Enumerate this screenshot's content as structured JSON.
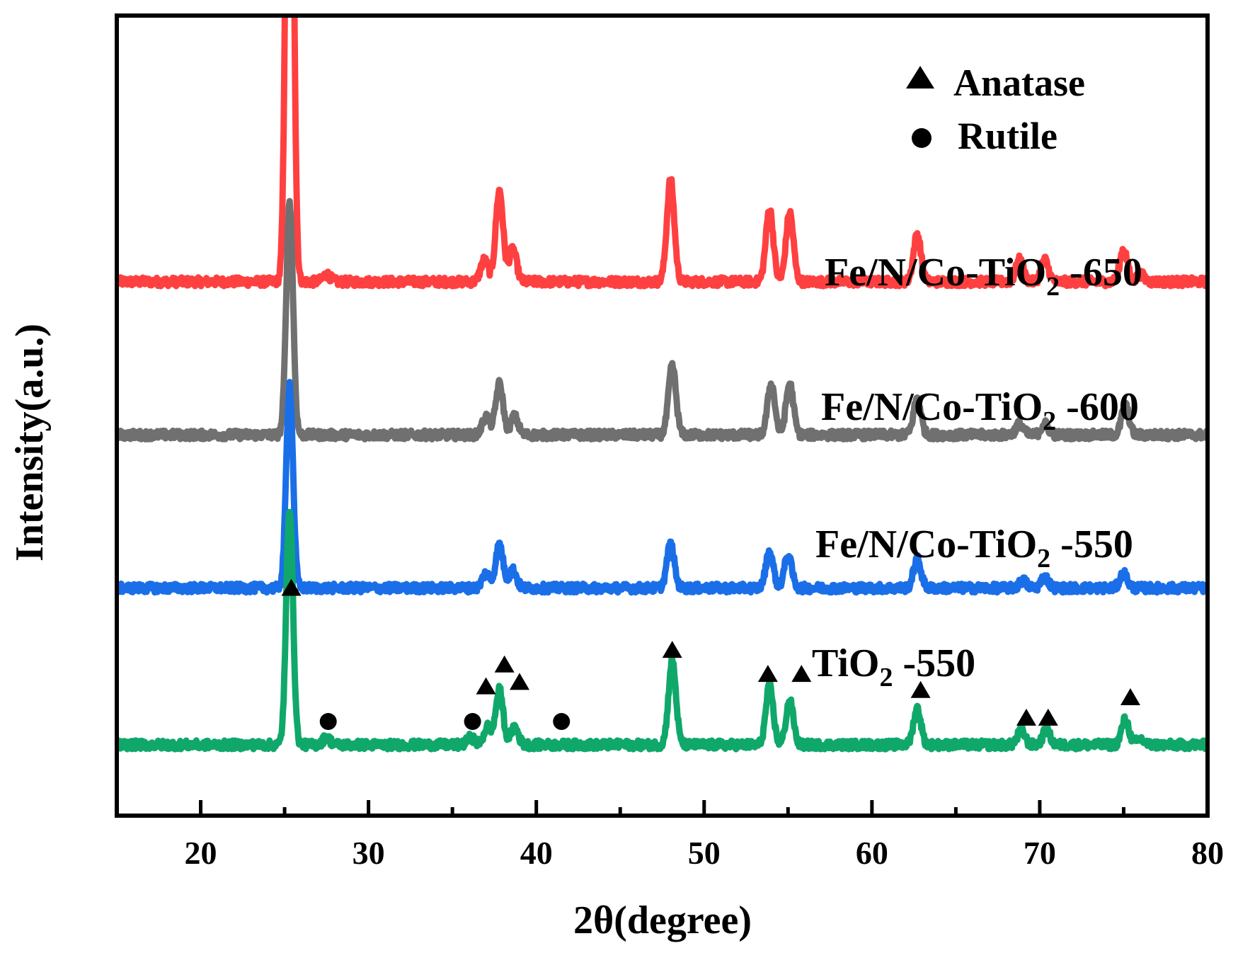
{
  "chart_data": {
    "type": "line",
    "title": "",
    "xlabel": "2θ(degree)",
    "ylabel": "Intensity(a.u.)",
    "xlim": [
      15,
      80
    ],
    "ylim": [
      0,
      1
    ],
    "x_ticks": [
      20,
      30,
      40,
      50,
      60,
      70,
      80
    ],
    "y_ticks": [],
    "legend": {
      "position": "top-right",
      "entries": [
        {
          "marker": "triangle",
          "label": "Anatase"
        },
        {
          "marker": "circle",
          "label": "Rutile"
        }
      ]
    },
    "series": [
      {
        "name": "Fe/N/Co-TiO2 -650",
        "label_parts": [
          "Fe/N/Co-TiO",
          "2",
          " -650"
        ],
        "color": "#ff4040",
        "baseline": 0.635,
        "peaks": [
          [
            25.3,
            1.05
          ],
          [
            27.5,
            0.01
          ],
          [
            36.9,
            0.03
          ],
          [
            37.8,
            0.125
          ],
          [
            38.6,
            0.045
          ],
          [
            48.0,
            0.14
          ],
          [
            53.9,
            0.1
          ],
          [
            55.1,
            0.095
          ],
          [
            62.7,
            0.065
          ],
          [
            68.8,
            0.03
          ],
          [
            70.3,
            0.03
          ],
          [
            75.0,
            0.045
          ],
          [
            76.0,
            0.01
          ]
        ]
      },
      {
        "name": "Fe/N/Co-TiO2 -600",
        "label_parts": [
          "Fe/N/Co-TiO",
          "2",
          " -600"
        ],
        "color": "#707070",
        "baseline": 0.425,
        "peaks": [
          [
            25.3,
            0.32
          ],
          [
            37.0,
            0.025
          ],
          [
            37.8,
            0.07
          ],
          [
            38.7,
            0.025
          ],
          [
            48.1,
            0.095
          ],
          [
            54.0,
            0.07
          ],
          [
            55.1,
            0.07
          ],
          [
            62.7,
            0.05
          ],
          [
            68.8,
            0.015
          ],
          [
            70.3,
            0.015
          ],
          [
            75.1,
            0.04
          ]
        ]
      },
      {
        "name": "Fe/N/Co-TiO2 -550",
        "label_parts": [
          "Fe/N/Co-TiO",
          "2",
          " -550"
        ],
        "color": "#1a6fe8",
        "baseline": 0.215,
        "peaks": [
          [
            25.3,
            0.28
          ],
          [
            37.0,
            0.02
          ],
          [
            37.8,
            0.06
          ],
          [
            38.6,
            0.025
          ],
          [
            48.0,
            0.06
          ],
          [
            53.9,
            0.05
          ],
          [
            55.0,
            0.045
          ],
          [
            62.7,
            0.04
          ],
          [
            69.0,
            0.01
          ],
          [
            70.3,
            0.015
          ],
          [
            75.0,
            0.02
          ]
        ]
      },
      {
        "name": "TiO2 -550",
        "label_parts": [
          "TiO",
          "2",
          " -550"
        ],
        "color": "#10a86a",
        "baseline": 0.0,
        "peaks": [
          [
            25.3,
            0.325
          ],
          [
            27.5,
            0.01
          ],
          [
            36.1,
            0.01
          ],
          [
            37.1,
            0.025
          ],
          [
            37.8,
            0.075
          ],
          [
            38.7,
            0.025
          ],
          [
            48.1,
            0.115
          ],
          [
            53.9,
            0.08
          ],
          [
            55.1,
            0.06
          ],
          [
            62.7,
            0.05
          ],
          [
            68.9,
            0.02
          ],
          [
            70.4,
            0.02
          ],
          [
            75.1,
            0.035
          ],
          [
            76.0,
            0.008
          ]
        ]
      }
    ],
    "annotations": [
      {
        "marker": "triangle",
        "x": 25.4,
        "y": 0.215
      },
      {
        "marker": "circle",
        "x": 27.6,
        "y": 0.032
      },
      {
        "marker": "circle",
        "x": 36.2,
        "y": 0.032
      },
      {
        "marker": "triangle",
        "x": 37.0,
        "y": 0.08
      },
      {
        "marker": "triangle",
        "x": 38.1,
        "y": 0.11
      },
      {
        "marker": "triangle",
        "x": 39.0,
        "y": 0.086
      },
      {
        "marker": "circle",
        "x": 41.5,
        "y": 0.032
      },
      {
        "marker": "triangle",
        "x": 48.1,
        "y": 0.13
      },
      {
        "marker": "triangle",
        "x": 53.8,
        "y": 0.097
      },
      {
        "marker": "triangle",
        "x": 55.8,
        "y": 0.097
      },
      {
        "marker": "triangle",
        "x": 62.9,
        "y": 0.075
      },
      {
        "marker": "triangle",
        "x": 69.2,
        "y": 0.037
      },
      {
        "marker": "triangle",
        "x": 70.5,
        "y": 0.037
      },
      {
        "marker": "triangle",
        "x": 75.4,
        "y": 0.065
      }
    ]
  }
}
